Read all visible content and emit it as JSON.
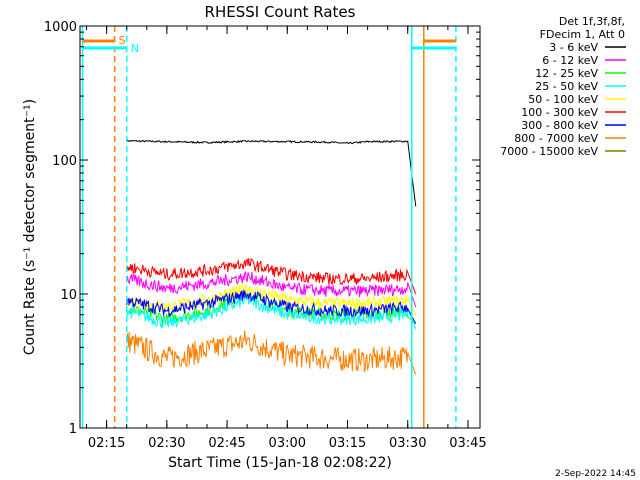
{
  "chart_data": {
    "type": "line",
    "title": "RHESSI Count Rates",
    "xlabel": "Start Time (15-Jan-18 02:08:22)",
    "ylabel": "Count Rate (s⁻¹ detector segment⁻¹)",
    "y_scale": "log",
    "ylim": [
      1,
      1000
    ],
    "xlim": [
      "02:08:22",
      "03:48:00"
    ],
    "x_ticks": [
      "02:15",
      "02:30",
      "02:45",
      "03:00",
      "03:15",
      "03:30",
      "03:45"
    ],
    "y_ticks": [
      "1",
      "10",
      "100",
      "1000"
    ],
    "grid": false,
    "legend_position": "right",
    "legend_header": [
      "Det 1f,3f,8f,",
      "FDecim 1, Att 0"
    ],
    "footer": "2-Sep-2022 14:45",
    "colors": {
      "3 - 6 keV": "#000000",
      "6 - 12 keV": "#ff00ff",
      "12 - 25 keV": "#00ff00",
      "25 - 50 keV": "#00ffff",
      "50 - 100 keV": "#ffff00",
      "100 - 300 keV": "#ff0000",
      "300 - 800 keV": "#0000ff",
      "800 - 7000 keV": "#ff8000",
      "7000 - 15000 keV": "#808000"
    },
    "series": [
      {
        "name": "3 - 6 keV",
        "x": [
          "02:20",
          "02:30",
          "02:40",
          "02:50",
          "03:00",
          "03:10",
          "03:15",
          "03:20",
          "03:30",
          "03:32"
        ],
        "values": [
          139,
          137,
          135,
          138,
          137,
          136,
          133,
          137,
          138,
          45
        ]
      },
      {
        "name": "6 - 12 keV",
        "x": [
          "02:20",
          "02:30",
          "02:40",
          "02:50",
          "03:00",
          "03:10",
          "03:20",
          "03:30",
          "03:32"
        ],
        "values": [
          13,
          11,
          12,
          13.5,
          11,
          10.5,
          10.5,
          11,
          8
        ]
      },
      {
        "name": "12 - 25 keV",
        "x": [
          "02:20",
          "02:30",
          "02:40",
          "02:50",
          "03:00",
          "03:10",
          "03:20",
          "03:30",
          "03:32"
        ],
        "values": [
          8,
          6.5,
          7.5,
          10,
          7.5,
          7,
          7,
          7.5,
          6
        ]
      },
      {
        "name": "25 - 50 keV",
        "x": [
          "02:20",
          "02:30",
          "02:40",
          "02:50",
          "03:00",
          "03:10",
          "03:20",
          "03:30",
          "03:32"
        ],
        "values": [
          7.5,
          6,
          7,
          9,
          7,
          6.5,
          6.5,
          7,
          5.5
        ]
      },
      {
        "name": "50 - 100 keV",
        "x": [
          "02:20",
          "02:30",
          "02:40",
          "02:50",
          "03:00",
          "03:10",
          "03:20",
          "03:30",
          "03:32"
        ],
        "values": [
          9,
          8,
          9,
          11,
          9,
          8.5,
          8.5,
          9,
          7
        ]
      },
      {
        "name": "100 - 300 keV",
        "x": [
          "02:20",
          "02:30",
          "02:40",
          "02:50",
          "03:00",
          "03:10",
          "03:20",
          "03:30",
          "03:32"
        ],
        "values": [
          16,
          14,
          15,
          17,
          14,
          13,
          13,
          14,
          10
        ]
      },
      {
        "name": "300 - 800 keV",
        "x": [
          "02:20",
          "02:30",
          "02:40",
          "02:50",
          "03:00",
          "03:10",
          "03:20",
          "03:30",
          "03:32"
        ],
        "values": [
          9,
          7.5,
          8.5,
          10,
          8,
          7.5,
          7.5,
          8,
          6
        ]
      },
      {
        "name": "800 - 7000 keV",
        "x": [
          "02:20",
          "02:30",
          "02:40",
          "02:50",
          "03:00",
          "03:10",
          "03:20",
          "03:30",
          "03:32"
        ],
        "values": [
          4.5,
          3.3,
          3.8,
          4.5,
          3.5,
          3.3,
          3.2,
          3.4,
          2.5
        ]
      }
    ],
    "markers": [
      {
        "label": "S",
        "color": "#ff8000",
        "style": "dashed",
        "x": "02:17"
      },
      {
        "label": "N",
        "color": "#00ffff",
        "style": "dashed",
        "x": "02:20"
      },
      {
        "label": "",
        "color": "#00ffff",
        "style": "solid",
        "x": "02:09"
      },
      {
        "label": "",
        "color": "#00ffff",
        "style": "solid",
        "x": "03:31"
      },
      {
        "label": "",
        "color": "#ff8000",
        "style": "solid",
        "x": "03:34"
      },
      {
        "label": "",
        "color": "#00ffff",
        "style": "dashed",
        "x": "03:42"
      }
    ],
    "flag_bars": [
      {
        "color": "#ff8000",
        "from": "02:09",
        "to": "02:17"
      },
      {
        "color": "#00ffff",
        "from": "02:09",
        "to": "02:20"
      },
      {
        "color": "#ff8000",
        "from": "03:34",
        "to": "03:42"
      },
      {
        "color": "#00ffff",
        "from": "03:31",
        "to": "03:42"
      }
    ]
  }
}
